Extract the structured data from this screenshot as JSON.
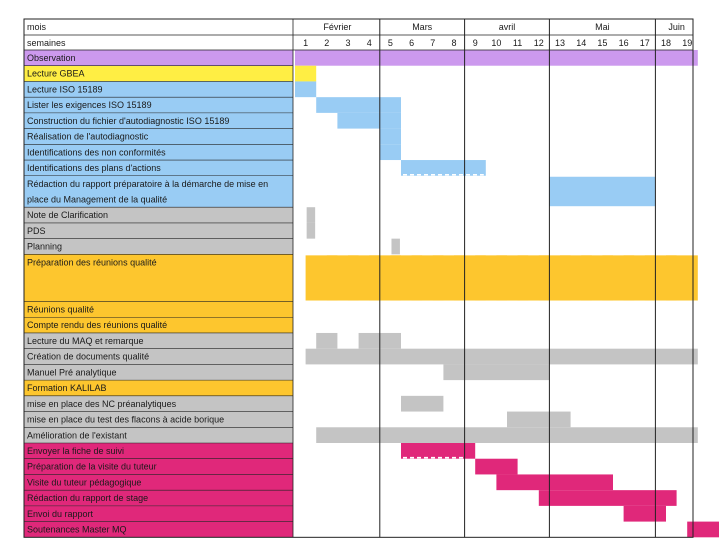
{
  "chart_data": {
    "type": "gantt",
    "header": {
      "month_label": "mois",
      "week_label": "semaines"
    },
    "months": [
      {
        "name": "Février",
        "start_week": 1,
        "end_week": 4
      },
      {
        "name": "Mars",
        "start_week": 5,
        "end_week": 8
      },
      {
        "name": "avril",
        "start_week": 9,
        "end_week": 12
      },
      {
        "name": "Mai",
        "start_week": 13,
        "end_week": 17
      },
      {
        "name": "Juin",
        "start_week": 18,
        "end_week": 19
      }
    ],
    "weeks": [
      "1",
      "2",
      "3",
      "4",
      "5",
      "6",
      "7",
      "8",
      "9",
      "10",
      "11",
      "12",
      "13",
      "14",
      "15",
      "16",
      "17",
      "18",
      "19"
    ],
    "colors": {
      "purple": "#cc99ee",
      "yellow": "#ffee44",
      "blue": "#99ccf4",
      "gray": "#c4c4c4",
      "orange": "#fdc62e",
      "pink": "#e0287a"
    },
    "tasks": [
      {
        "label": "Observation",
        "color": "purple",
        "bars": [
          [
            1,
            19
          ]
        ]
      },
      {
        "label": "Lecture GBEA",
        "color": "yellow",
        "bars": [
          [
            1,
            1
          ]
        ]
      },
      {
        "label": "Lecture ISO 15189",
        "color": "blue",
        "bars": [
          [
            1,
            1
          ]
        ]
      },
      {
        "label": "Lister les exigences ISO 15189",
        "color": "blue",
        "bars": [
          [
            2,
            5
          ]
        ]
      },
      {
        "label": "Construction du fichier d'autodiagnostic ISO 15189",
        "color": "blue",
        "bars": [
          [
            3,
            5
          ]
        ]
      },
      {
        "label": "Réalisation de l'autodiagnostic",
        "color": "blue",
        "bars": [
          [
            5,
            5
          ]
        ]
      },
      {
        "label": "Identifications des non conformités",
        "color": "blue",
        "bars": [
          [
            5,
            5
          ]
        ]
      },
      {
        "label": "Identifications des plans d'actions",
        "color": "blue",
        "bars": [
          [
            6,
            9
          ]
        ]
      },
      {
        "label": "Rédaction du rapport préparatoire à la démarche de mise en place du Management de la qualité",
        "color": "blue",
        "bars": [
          [
            13,
            17
          ]
        ],
        "span": 2
      },
      {
        "label": "Note de Clarification",
        "color": "gray",
        "bars": [
          [
            1.55,
            1.95
          ]
        ]
      },
      {
        "label": "PDS",
        "color": "gray",
        "bars": [
          [
            1.55,
            1.95
          ]
        ]
      },
      {
        "label": "Planning",
        "color": "gray",
        "bars": [
          [
            5.55,
            5.95
          ]
        ]
      },
      {
        "label": "Préparation des réunions qualité",
        "color": "orange",
        "bars": [
          [
            1.5,
            2.0
          ],
          [
            2.5,
            3.0
          ],
          [
            3.5,
            4.0
          ],
          [
            4.5,
            5.0
          ],
          [
            5.5,
            6.0
          ],
          [
            6.5,
            7.0
          ],
          [
            7.5,
            8.0
          ],
          [
            8.5,
            9.0
          ],
          [
            9.5,
            10.0
          ],
          [
            10.5,
            11.0
          ],
          [
            11.5,
            12.0
          ],
          [
            12.5,
            13.0
          ],
          [
            13.5,
            14.0
          ],
          [
            14.5,
            15.0
          ],
          [
            15.5,
            16.0
          ],
          [
            16.5,
            17.0
          ],
          [
            17.5,
            18.0
          ],
          [
            18.5,
            19.0
          ]
        ],
        "span": 3
      },
      {
        "label": "Réunions qualité",
        "color": "orange",
        "bars": []
      },
      {
        "label": "Compte rendu des réunions qualité",
        "color": "orange",
        "bars": []
      },
      {
        "label": "Lecture du MAQ et remarque",
        "color": "gray",
        "bars": [
          [
            2,
            2
          ],
          [
            4,
            4
          ],
          [
            5,
            5
          ]
        ]
      },
      {
        "label": "Création de documents qualité",
        "color": "gray",
        "bars": [
          [
            1.5,
            19
          ]
        ]
      },
      {
        "label": "Manuel Pré analytique",
        "color": "gray",
        "bars": [
          [
            8,
            12
          ]
        ]
      },
      {
        "label": "Formation KALILAB",
        "color": "orange",
        "bars": []
      },
      {
        "label": "mise en place des NC préanalytiques",
        "color": "gray",
        "bars": [
          [
            6,
            7
          ]
        ]
      },
      {
        "label": "mise en place du test des flacons à acide borique",
        "color": "gray",
        "bars": [
          [
            11,
            13
          ]
        ]
      },
      {
        "label": "Amélioration de l'existant",
        "color": "gray",
        "bars": [
          [
            2,
            19
          ]
        ]
      },
      {
        "label": "Envoyer la fiche de suivi",
        "color": "pink",
        "bars": [
          [
            6,
            9.5
          ]
        ]
      },
      {
        "label": "Préparation de la visite du tuteur",
        "color": "pink",
        "bars": [
          [
            9.5,
            11.5
          ]
        ]
      },
      {
        "label": "Visite du tuteur pédagogique",
        "color": "pink",
        "bars": [
          [
            10.5,
            15
          ]
        ]
      },
      {
        "label": "Rédaction du rapport de stage",
        "color": "pink",
        "bars": [
          [
            12.5,
            18
          ]
        ]
      },
      {
        "label": "Envoi du rapport",
        "color": "pink",
        "bars": [
          [
            16.5,
            18.5
          ]
        ]
      },
      {
        "label": "Soutenances Master MQ",
        "color": "pink",
        "bars": [
          [
            19.5,
            20
          ]
        ]
      }
    ]
  }
}
